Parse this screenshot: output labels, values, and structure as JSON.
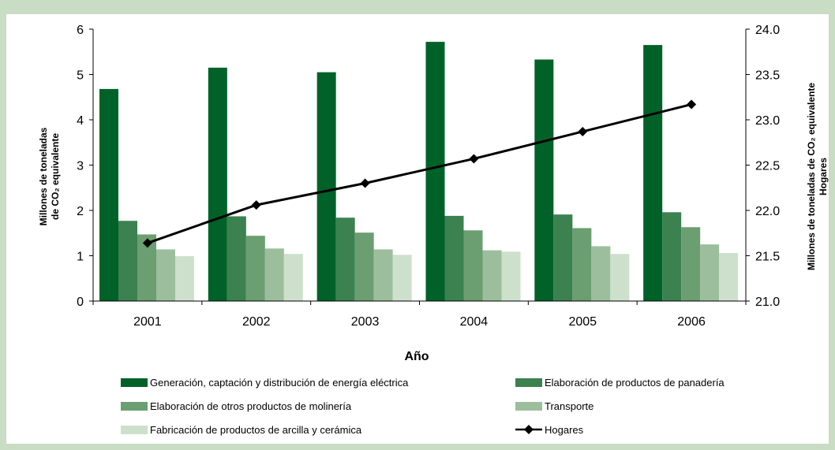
{
  "chart_data": {
    "type": "bar",
    "categories": [
      "2001",
      "2002",
      "2003",
      "2004",
      "2005",
      "2006"
    ],
    "xlabel": "Año",
    "ylabel_left": [
      "Millones de toneladas",
      "de CO₂ equivalente"
    ],
    "ylabel_right": [
      "Millones de toneladas de CO₂ equivalente",
      "Hogares"
    ],
    "ylim_left": [
      0,
      6
    ],
    "yticks_left": [
      "0",
      "1",
      "2",
      "3",
      "4",
      "5",
      "6"
    ],
    "ylim_right": [
      21.0,
      24.0
    ],
    "yticks_right": [
      "21.0",
      "21.5",
      "22.0",
      "22.5",
      "23.0",
      "23.5",
      "24.0"
    ],
    "grid": "off",
    "legend_position": "bottom",
    "series": [
      {
        "name": "Generación, captación y distribución de energía eléctrica",
        "kind": "bar",
        "axis": "left",
        "color": "#006228",
        "values": [
          4.68,
          5.15,
          5.05,
          5.72,
          5.33,
          5.65
        ]
      },
      {
        "name": "Elaboración de productos de panadería",
        "kind": "bar",
        "axis": "left",
        "color": "#3c8150",
        "values": [
          1.77,
          1.87,
          1.84,
          1.88,
          1.91,
          1.96
        ]
      },
      {
        "name": "Elaboración de otros productos de molinería",
        "kind": "bar",
        "axis": "left",
        "color": "#6b9e71",
        "values": [
          1.47,
          1.44,
          1.51,
          1.56,
          1.61,
          1.63
        ]
      },
      {
        "name": "Transporte",
        "kind": "bar",
        "axis": "left",
        "color": "#9cbe9c",
        "values": [
          1.14,
          1.16,
          1.14,
          1.12,
          1.21,
          1.25
        ]
      },
      {
        "name": "Fabricación de productos de arcilla y cerámica",
        "kind": "bar",
        "axis": "left",
        "color": "#cde0cc",
        "values": [
          0.99,
          1.04,
          1.02,
          1.09,
          1.04,
          1.06
        ]
      },
      {
        "name": "Hogares",
        "kind": "line",
        "axis": "right",
        "color": "#000000",
        "values": [
          21.64,
          22.06,
          22.3,
          22.57,
          22.87,
          23.17
        ]
      }
    ]
  }
}
